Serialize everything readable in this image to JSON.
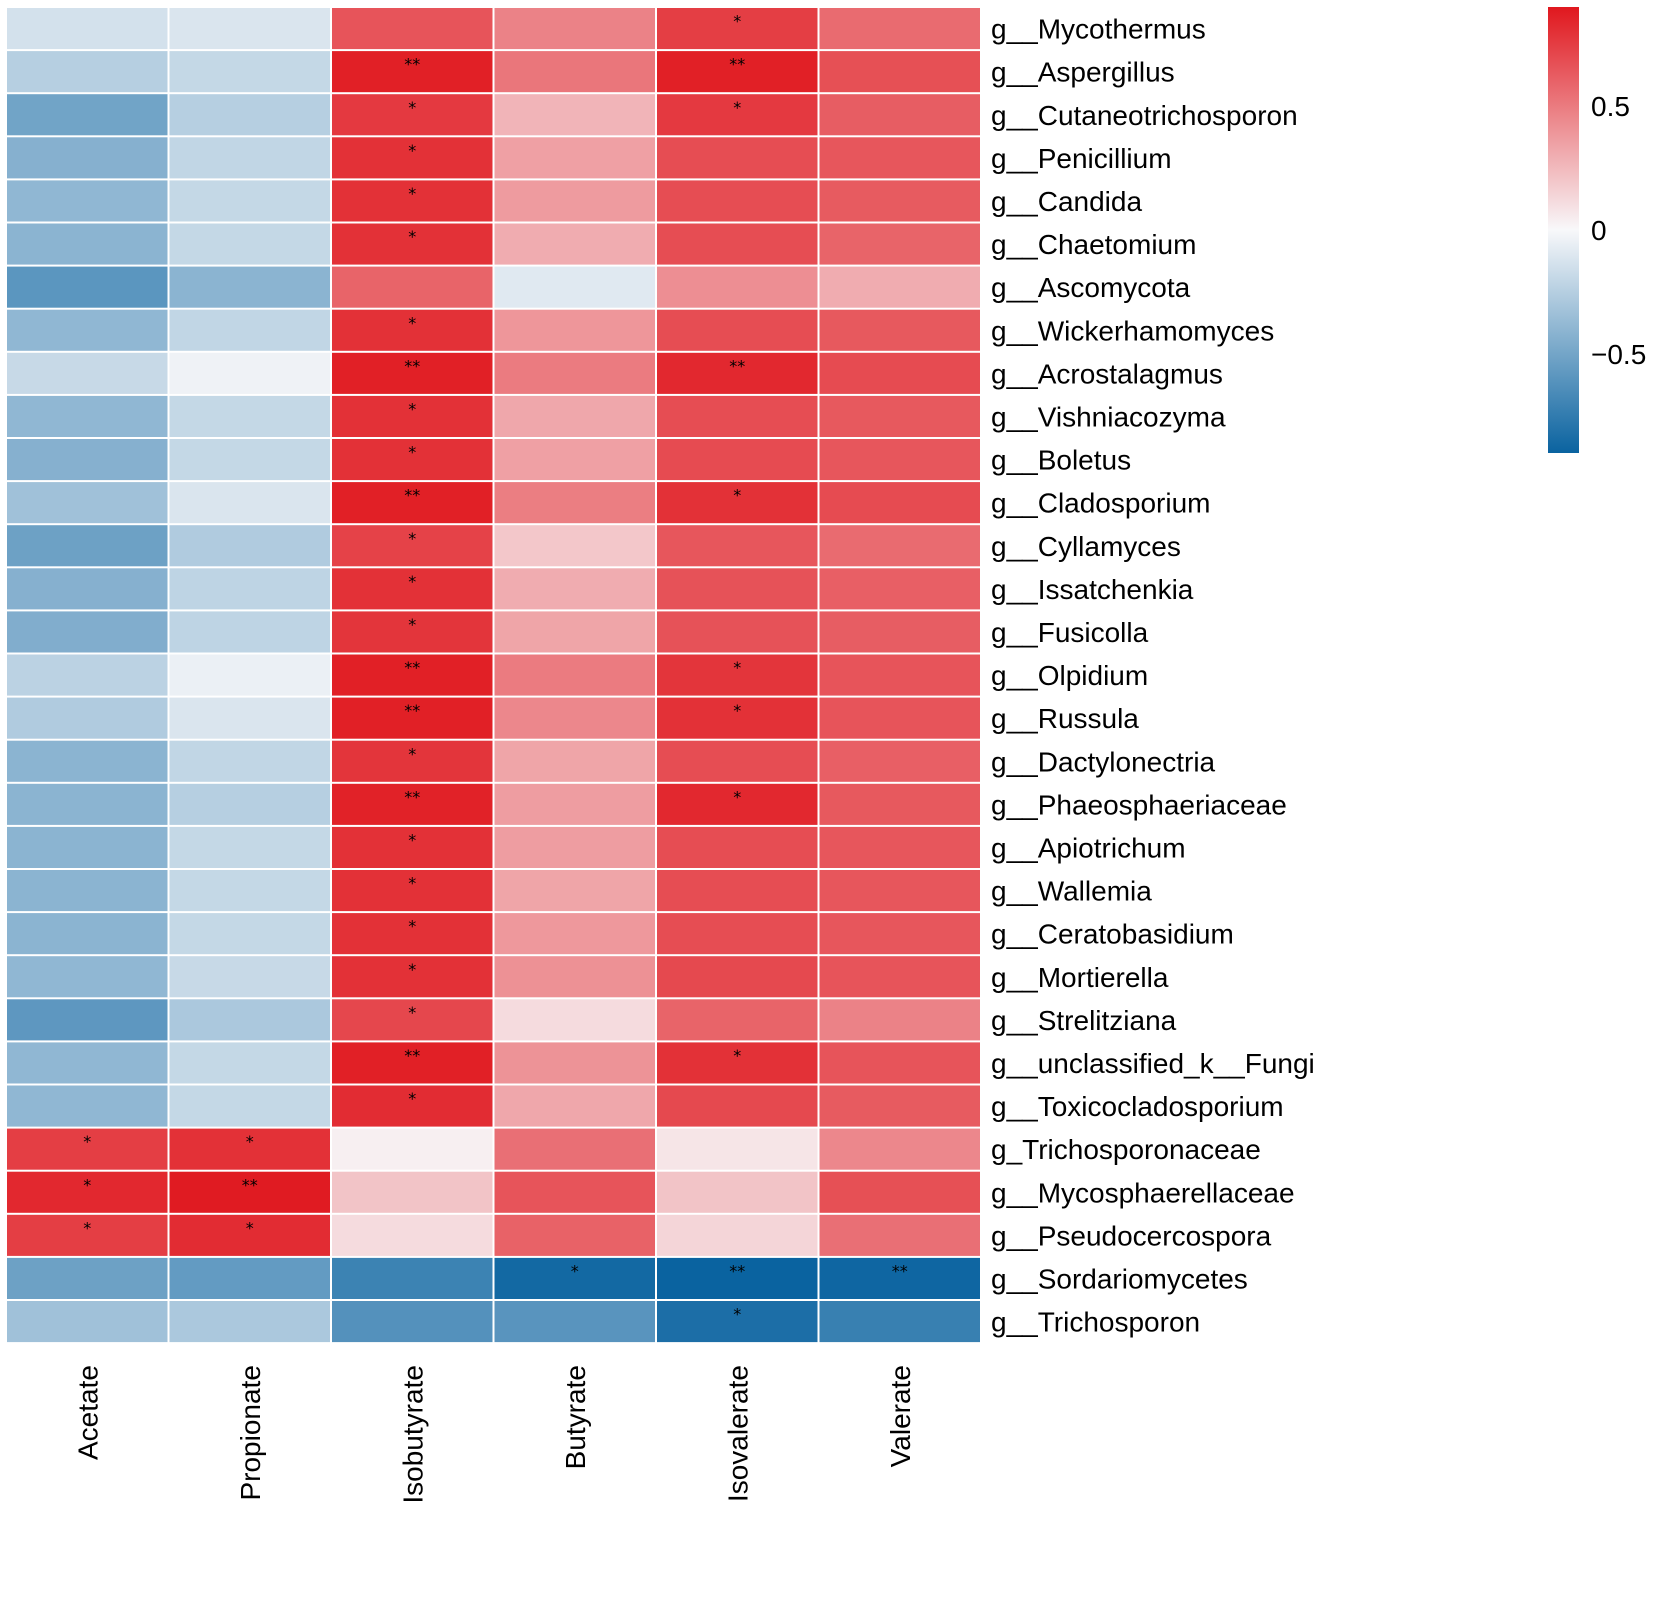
{
  "chart_data": {
    "type": "heatmap",
    "title": "",
    "columns": [
      "Acetate",
      "Propionate",
      "Isobutyrate",
      "Butyrate",
      "Isovalerate",
      "Valerate"
    ],
    "rows": [
      "g__Mycothermus",
      "g__Aspergillus",
      "g__Cutaneotrichosporon",
      "g__Penicillium",
      "g__Candida",
      "g__Chaetomium",
      "g__Ascomycota",
      "g__Wickerhamomyces",
      "g__Acrostalagmus",
      "g__Vishniacozyma",
      "g__Boletus",
      "g__Cladosporium",
      "g__Cyllamyces",
      "g__Issatchenkia",
      "g__Fusicolla",
      "g__Olpidium",
      "g__Russula",
      "g__Dactylonectria",
      "g__Phaeosphaeriaceae",
      "g__Apiotrichum",
      "g__Wallemia",
      "g__Ceratobasidium",
      "g__Mortierella",
      "g__Strelitziana",
      "g__unclassified_k__Fungi",
      "g__Toxicocladosporium",
      "g_Trichosporonaceae",
      "g__Mycosphaerellaceae",
      "g__Pseudocercospora",
      "g__Sordariomycetes",
      "g__Trichosporon"
    ],
    "values": [
      [
        -0.1,
        -0.08,
        0.62,
        0.42,
        0.72,
        0.52
      ],
      [
        -0.2,
        -0.15,
        0.86,
        0.47,
        0.86,
        0.64
      ],
      [
        -0.46,
        -0.2,
        0.74,
        0.22,
        0.74,
        0.58
      ],
      [
        -0.38,
        -0.16,
        0.78,
        0.3,
        0.65,
        0.61
      ],
      [
        -0.34,
        -0.15,
        0.78,
        0.32,
        0.65,
        0.59
      ],
      [
        -0.36,
        -0.15,
        0.78,
        0.25,
        0.65,
        0.55
      ],
      [
        -0.55,
        -0.36,
        0.55,
        -0.06,
        0.37,
        0.25
      ],
      [
        -0.34,
        -0.16,
        0.78,
        0.34,
        0.65,
        0.6
      ],
      [
        -0.14,
        -0.02,
        0.86,
        0.45,
        0.82,
        0.66
      ],
      [
        -0.34,
        -0.15,
        0.78,
        0.27,
        0.65,
        0.6
      ],
      [
        -0.38,
        -0.15,
        0.78,
        0.3,
        0.66,
        0.61
      ],
      [
        -0.28,
        -0.08,
        0.86,
        0.44,
        0.78,
        0.66
      ],
      [
        -0.48,
        -0.22,
        0.7,
        0.15,
        0.61,
        0.52
      ],
      [
        -0.38,
        -0.17,
        0.78,
        0.25,
        0.63,
        0.57
      ],
      [
        -0.4,
        -0.17,
        0.76,
        0.28,
        0.63,
        0.58
      ],
      [
        -0.18,
        -0.03,
        0.86,
        0.45,
        0.76,
        0.62
      ],
      [
        -0.22,
        -0.08,
        0.86,
        0.4,
        0.78,
        0.62
      ],
      [
        -0.36,
        -0.16,
        0.76,
        0.28,
        0.65,
        0.57
      ],
      [
        -0.36,
        -0.2,
        0.85,
        0.31,
        0.82,
        0.6
      ],
      [
        -0.36,
        -0.15,
        0.78,
        0.31,
        0.65,
        0.61
      ],
      [
        -0.36,
        -0.15,
        0.78,
        0.28,
        0.65,
        0.61
      ],
      [
        -0.36,
        -0.15,
        0.78,
        0.33,
        0.65,
        0.61
      ],
      [
        -0.34,
        -0.14,
        0.78,
        0.36,
        0.67,
        0.62
      ],
      [
        -0.54,
        -0.24,
        0.68,
        0.08,
        0.55,
        0.42
      ],
      [
        -0.34,
        -0.15,
        0.86,
        0.35,
        0.78,
        0.62
      ],
      [
        -0.34,
        -0.15,
        0.8,
        0.27,
        0.67,
        0.59
      ],
      [
        0.72,
        0.78,
        0.02,
        0.5,
        0.05,
        0.4
      ],
      [
        0.82,
        0.88,
        0.16,
        0.62,
        0.16,
        0.64
      ],
      [
        0.72,
        0.8,
        0.08,
        0.56,
        0.1,
        0.5
      ],
      [
        -0.48,
        -0.52,
        -0.68,
        -0.86,
        -0.9,
        -0.88
      ],
      [
        -0.28,
        -0.24,
        -0.58,
        -0.56,
        -0.82,
        -0.7
      ]
    ],
    "significance": [
      [
        "",
        "",
        "",
        "",
        "*",
        ""
      ],
      [
        "",
        "",
        "**",
        "",
        "**",
        ""
      ],
      [
        "",
        "",
        "*",
        "",
        "*",
        ""
      ],
      [
        "",
        "",
        "*",
        "",
        "",
        ""
      ],
      [
        "",
        "",
        "*",
        "",
        "",
        ""
      ],
      [
        "",
        "",
        "*",
        "",
        "",
        ""
      ],
      [
        "",
        "",
        "",
        "",
        "",
        ""
      ],
      [
        "",
        "",
        "*",
        "",
        "",
        ""
      ],
      [
        "",
        "",
        "**",
        "",
        "**",
        ""
      ],
      [
        "",
        "",
        "*",
        "",
        "",
        ""
      ],
      [
        "",
        "",
        "*",
        "",
        "",
        ""
      ],
      [
        "",
        "",
        "**",
        "",
        "*",
        ""
      ],
      [
        "",
        "",
        "*",
        "",
        "",
        ""
      ],
      [
        "",
        "",
        "*",
        "",
        "",
        ""
      ],
      [
        "",
        "",
        "*",
        "",
        "",
        ""
      ],
      [
        "",
        "",
        "**",
        "",
        "*",
        ""
      ],
      [
        "",
        "",
        "**",
        "",
        "*",
        ""
      ],
      [
        "",
        "",
        "*",
        "",
        "",
        ""
      ],
      [
        "",
        "",
        "**",
        "",
        "*",
        ""
      ],
      [
        "",
        "",
        "*",
        "",
        "",
        ""
      ],
      [
        "",
        "",
        "*",
        "",
        "",
        ""
      ],
      [
        "",
        "",
        "*",
        "",
        "",
        ""
      ],
      [
        "",
        "",
        "*",
        "",
        "",
        ""
      ],
      [
        "",
        "",
        "*",
        "",
        "",
        ""
      ],
      [
        "",
        "",
        "**",
        "",
        "*",
        ""
      ],
      [
        "",
        "",
        "*",
        "",
        "",
        ""
      ],
      [
        "*",
        "*",
        "",
        "",
        "",
        ""
      ],
      [
        "*",
        "**",
        "",
        "",
        "",
        ""
      ],
      [
        "*",
        "*",
        "",
        "",
        "",
        ""
      ],
      [
        "",
        "",
        "",
        "*",
        "**",
        "**"
      ],
      [
        "",
        "",
        "",
        "",
        "*",
        ""
      ]
    ],
    "colorbar": {
      "range": [
        -0.9,
        0.9
      ],
      "ticks": [
        0.5,
        0,
        -0.5
      ],
      "tick_labels": [
        "0.5",
        "0",
        "−0.5"
      ],
      "low_color": "#0a63a0",
      "mid_color": "#f8f8fa",
      "high_color": "#e0171e"
    }
  }
}
